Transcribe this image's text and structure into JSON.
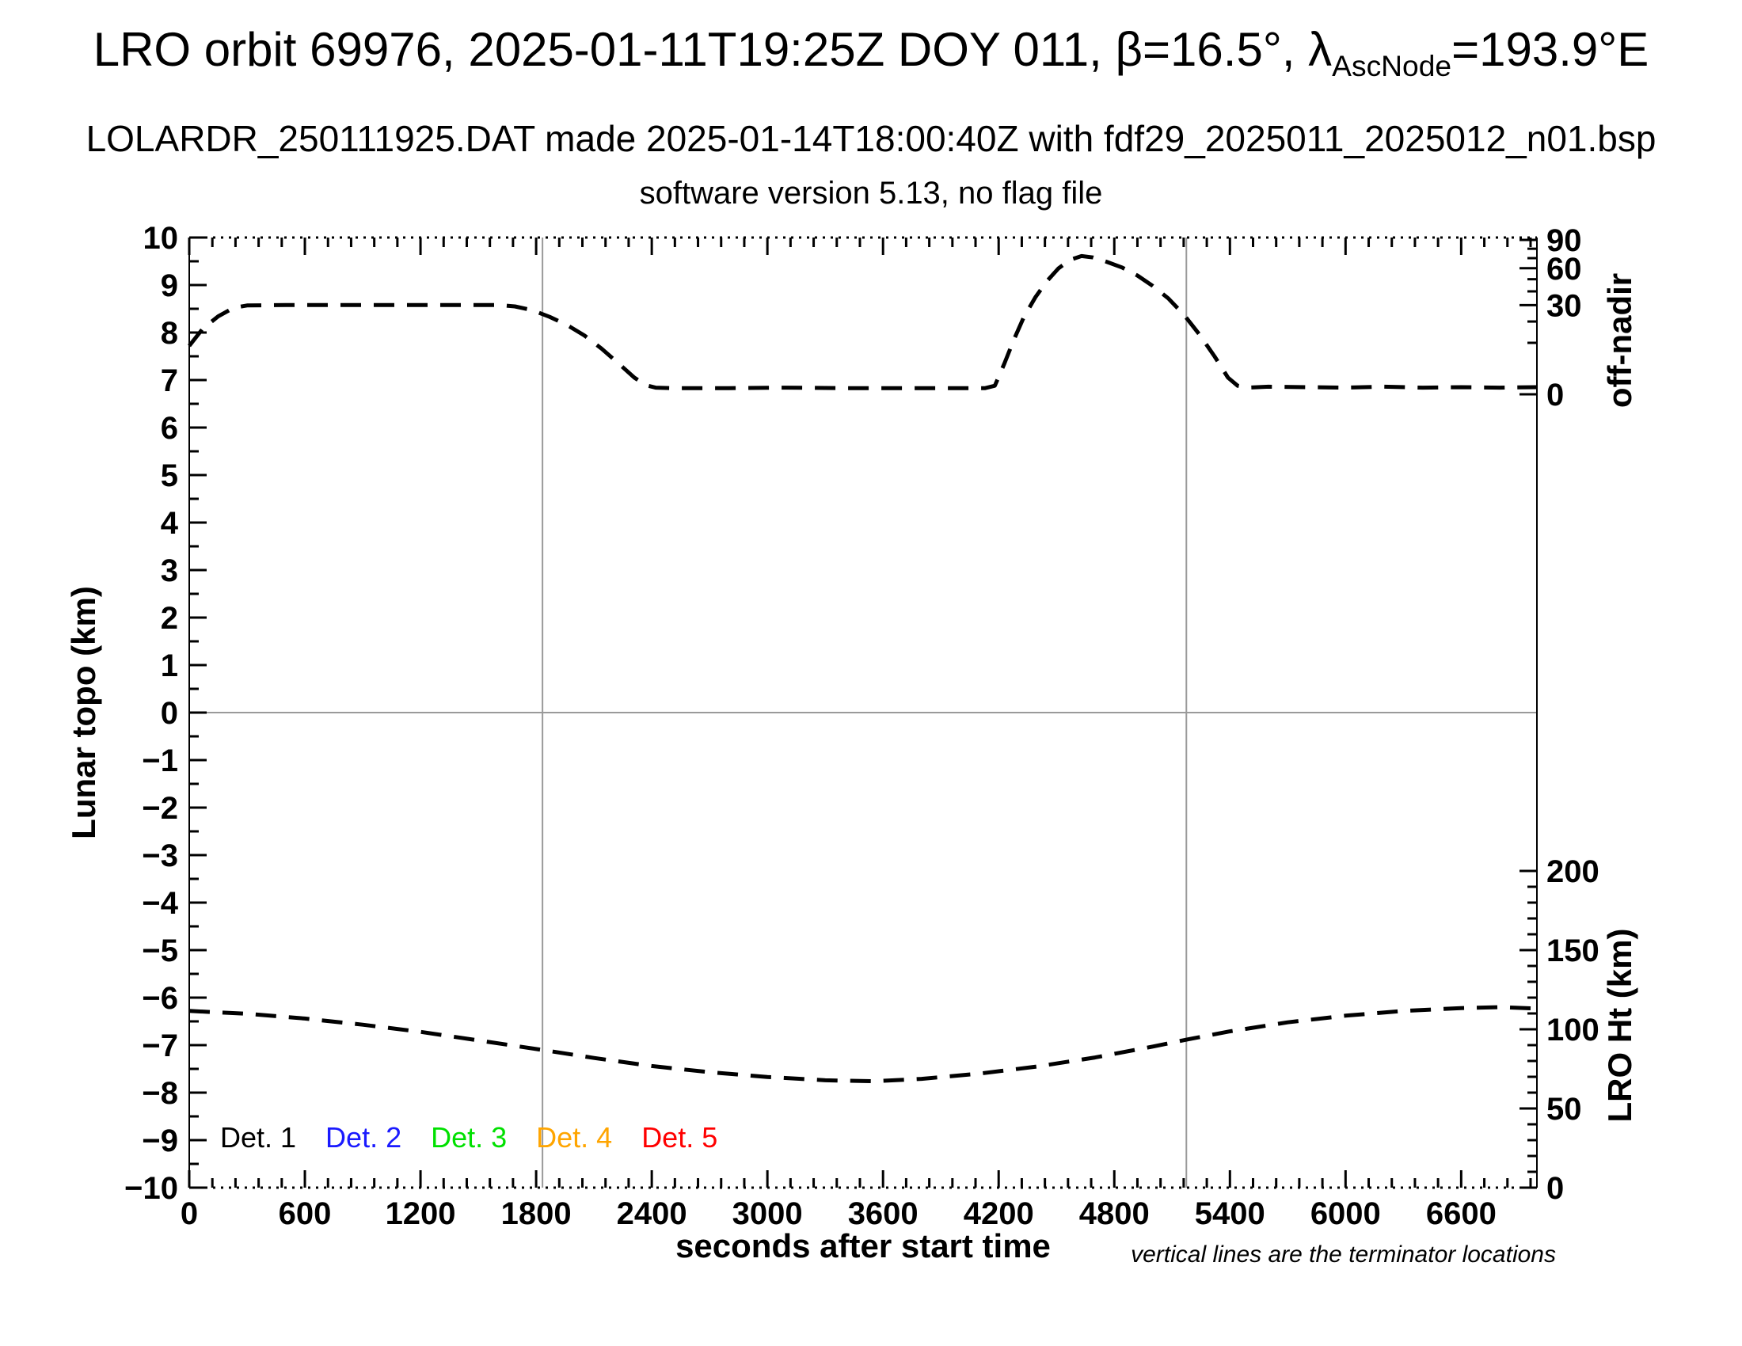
{
  "header": {
    "title_prefix": "LRO orbit 69976, 2025-01-11T19:25Z DOY 011, β=16.5°, λ",
    "title_subscript": "AscNode",
    "title_suffix": "=193.9°E",
    "subtitle1": "LOLARDR_250111925.DAT made 2025-01-14T18:00:40Z with fdf29_2025011_2025012_n01.bsp",
    "subtitle2": "software version 5.13, no flag file"
  },
  "chart_data": {
    "type": "line",
    "title": "LRO orbit 69976, 2025-01-11T19:25Z DOY 011, β=16.5°, λ_AscNode=193.9°E",
    "xlabel": "seconds after start time",
    "ylabel_left": "Lunar topo (km)",
    "ylabel_right_top": "off-nadir",
    "ylabel_right_bottom": "LRO Ht (km)",
    "footnote": "vertical lines are the terminator locations",
    "grid": "zero-line and terminator lines only",
    "legend_position": "bottom-left inside plot",
    "x_axis": {
      "min": 0,
      "max": 6993,
      "major_tick_s": 600,
      "minor_tick_s": 120,
      "tick_labels": [
        "0",
        "600",
        "1200",
        "1800",
        "2400",
        "3000",
        "3600",
        "4200",
        "4800",
        "5400",
        "6000",
        "6600"
      ]
    },
    "y_axis_left": {
      "min": -10,
      "max": 10,
      "major": 1,
      "minor": 0.5,
      "tick_labels": [
        "10",
        "9",
        "8",
        "7",
        "6",
        "5",
        "4",
        "3",
        "2",
        "1",
        "0",
        "−1",
        "−2",
        "−3",
        "−4",
        "−5",
        "−6",
        "−7",
        "−8",
        "−9",
        "−10"
      ]
    },
    "y_axis_right_top": {
      "name": "off-nadir angle (deg)",
      "scale": "nonlinear, topo = 6.70 + 3.25*sqrt(angle/90)",
      "labeled_ticks": [
        90,
        60,
        30,
        0
      ],
      "minor_ticks": [
        10,
        20,
        40,
        50,
        70,
        80
      ]
    },
    "y_axis_right_bottom": {
      "name": "LRO height (km)",
      "scale": "linear, topo = km/30 - 10",
      "labeled_ticks": [
        200,
        150,
        100,
        50,
        0
      ],
      "minor_step_km": 10
    },
    "zero_line_topo": 0,
    "terminator_lines_sec": [
      1833,
      5174
    ],
    "series": [
      {
        "name": "off-nadir angle profile (dashed, black, plotted against right-top axis)",
        "style": "dashed",
        "color": "#000000",
        "notes": "flat segments at ~30 deg (topo 8.58) and ~0 deg (topo 6.83); peak ~72 deg (topo 9.6) near second terminator",
        "points_sec_topo": [
          [
            0,
            7.72
          ],
          [
            70,
            8.08
          ],
          [
            150,
            8.34
          ],
          [
            230,
            8.52
          ],
          [
            300,
            8.57
          ],
          [
            500,
            8.58
          ],
          [
            800,
            8.58
          ],
          [
            1100,
            8.58
          ],
          [
            1400,
            8.58
          ],
          [
            1600,
            8.58
          ],
          [
            1690,
            8.55
          ],
          [
            1780,
            8.47
          ],
          [
            1870,
            8.33
          ],
          [
            1960,
            8.16
          ],
          [
            2050,
            7.94
          ],
          [
            2140,
            7.66
          ],
          [
            2230,
            7.34
          ],
          [
            2310,
            7.05
          ],
          [
            2370,
            6.89
          ],
          [
            2420,
            6.84
          ],
          [
            2500,
            6.83
          ],
          [
            2800,
            6.83
          ],
          [
            3100,
            6.84
          ],
          [
            3400,
            6.83
          ],
          [
            3700,
            6.83
          ],
          [
            4000,
            6.83
          ],
          [
            4130,
            6.83
          ],
          [
            4180,
            6.88
          ],
          [
            4230,
            7.35
          ],
          [
            4280,
            7.86
          ],
          [
            4330,
            8.32
          ],
          [
            4390,
            8.74
          ],
          [
            4450,
            9.08
          ],
          [
            4510,
            9.35
          ],
          [
            4570,
            9.53
          ],
          [
            4630,
            9.61
          ],
          [
            4690,
            9.58
          ],
          [
            4760,
            9.49
          ],
          [
            4840,
            9.37
          ],
          [
            4920,
            9.2
          ],
          [
            5000,
            8.98
          ],
          [
            5080,
            8.72
          ],
          [
            5160,
            8.38
          ],
          [
            5240,
            7.97
          ],
          [
            5320,
            7.5
          ],
          [
            5390,
            7.05
          ],
          [
            5440,
            6.88
          ],
          [
            5490,
            6.84
          ],
          [
            5600,
            6.86
          ],
          [
            5800,
            6.85
          ],
          [
            6000,
            6.84
          ],
          [
            6200,
            6.86
          ],
          [
            6400,
            6.84
          ],
          [
            6600,
            6.85
          ],
          [
            6800,
            6.84
          ],
          [
            6990,
            6.85
          ]
        ]
      },
      {
        "name": "LRO height profile (dashed, black, plotted against right-bottom axis)",
        "style": "dashed",
        "color": "#000000",
        "notes": "starts ~112 km, minimum ~67 km near 3550 s, recovers to ~114 km by orbit end",
        "points_sec_topo": [
          [
            0,
            -6.28
          ],
          [
            300,
            -6.34
          ],
          [
            600,
            -6.44
          ],
          [
            900,
            -6.57
          ],
          [
            1200,
            -6.72
          ],
          [
            1500,
            -6.9
          ],
          [
            1830,
            -7.1
          ],
          [
            2100,
            -7.27
          ],
          [
            2400,
            -7.44
          ],
          [
            2700,
            -7.57
          ],
          [
            3000,
            -7.67
          ],
          [
            3300,
            -7.74
          ],
          [
            3550,
            -7.76
          ],
          [
            3800,
            -7.71
          ],
          [
            4100,
            -7.6
          ],
          [
            4400,
            -7.45
          ],
          [
            4700,
            -7.26
          ],
          [
            5000,
            -7.03
          ],
          [
            5180,
            -6.88
          ],
          [
            5400,
            -6.71
          ],
          [
            5700,
            -6.52
          ],
          [
            6000,
            -6.38
          ],
          [
            6300,
            -6.28
          ],
          [
            6600,
            -6.22
          ],
          [
            6800,
            -6.2
          ],
          [
            6990,
            -6.23
          ]
        ]
      }
    ],
    "legend": [
      {
        "label": "Det. 1",
        "color": "#000000"
      },
      {
        "label": "Det. 2",
        "color": "#1a1aff"
      },
      {
        "label": "Det. 3",
        "color": "#00e000"
      },
      {
        "label": "Det. 4",
        "color": "#ffa500"
      },
      {
        "label": "Det. 5",
        "color": "#ff0000"
      }
    ],
    "line_colors": {
      "curves": "#000000",
      "reference_lines": "#9a9a9a"
    }
  }
}
